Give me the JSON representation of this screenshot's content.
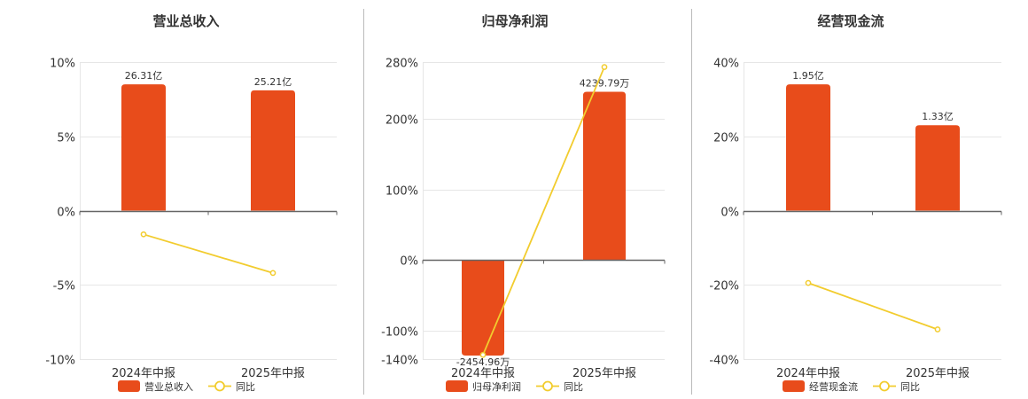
{
  "colors": {
    "bar": "#e84c1b",
    "line": "#f2cc2e",
    "grid": "#e6e6e6",
    "axis": "#666666",
    "divider": "#bbbbbb"
  },
  "chart_data": [
    {
      "type": "bar",
      "title": "营业总收入",
      "categories": [
        "2024年中报",
        "2025年中报"
      ],
      "ylim": [
        -10,
        10
      ],
      "yticks": [
        -10,
        -5,
        0,
        5,
        10
      ],
      "yticklabels": [
        "-10%",
        "-5%",
        "0%",
        "5%",
        "10%"
      ],
      "series": [
        {
          "name": "营业总收入",
          "type": "bar",
          "values": [
            8.5,
            8.1
          ],
          "labels": [
            "26.31亿",
            "25.21亿"
          ]
        },
        {
          "name": "同比",
          "type": "line",
          "values": [
            -1.6,
            -4.2
          ]
        }
      ],
      "grid": true,
      "legend": "bottom-center"
    },
    {
      "type": "bar",
      "title": "归母净利润",
      "categories": [
        "2024年中报",
        "2025年中报"
      ],
      "ylim": [
        -140,
        280
      ],
      "yticks": [
        -140,
        -100,
        0,
        100,
        200,
        280
      ],
      "yticklabels": [
        "-140%",
        "-100%",
        "0%",
        "100%",
        "200%",
        "280%"
      ],
      "series": [
        {
          "name": "归母净利润",
          "type": "bar",
          "values": [
            -135,
            238
          ],
          "labels": [
            "-2454.96万",
            "4239.79万"
          ]
        },
        {
          "name": "同比",
          "type": "line",
          "values": [
            -134,
            273
          ]
        }
      ],
      "grid": true,
      "legend": "bottom-center"
    },
    {
      "type": "bar",
      "title": "经营现金流",
      "categories": [
        "2024年中报",
        "2025年中报"
      ],
      "ylim": [
        -40,
        40
      ],
      "yticks": [
        -40,
        -20,
        0,
        20,
        40
      ],
      "yticklabels": [
        "-40%",
        "-20%",
        "0%",
        "20%",
        "40%"
      ],
      "series": [
        {
          "name": "经营现金流",
          "type": "bar",
          "values": [
            34,
            23
          ],
          "labels": [
            "1.95亿",
            "1.33亿"
          ]
        },
        {
          "name": "同比",
          "type": "line",
          "values": [
            -19.5,
            -32
          ]
        }
      ],
      "grid": true,
      "legend": "bottom-center"
    }
  ]
}
